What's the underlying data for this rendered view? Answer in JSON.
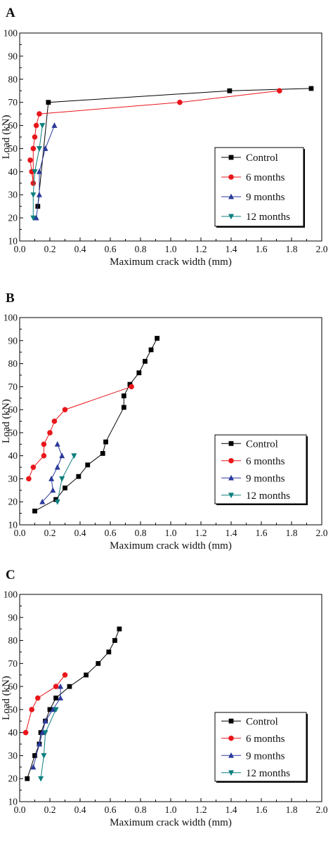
{
  "chart_data": [
    {
      "panel": "A",
      "type": "line",
      "xlabel": "Maximum crack width (mm)",
      "ylabel": "Load (kN)",
      "xlim": [
        0,
        2.0
      ],
      "ylim": [
        10,
        100
      ],
      "xticks": [
        "0.0",
        "0.2",
        "0.4",
        "0.6",
        "0.8",
        "1.0",
        "1.2",
        "1.4",
        "1.6",
        "1.8",
        "2.0"
      ],
      "yticks": [
        "10",
        "20",
        "30",
        "40",
        "50",
        "60",
        "70",
        "80",
        "90",
        "100"
      ],
      "legend": "lower-right",
      "series": [
        {
          "name": "Control",
          "color": "#000000",
          "marker": "square",
          "points": [
            [
              0.12,
              25
            ],
            [
              0.19,
              70
            ],
            [
              1.39,
              75
            ],
            [
              1.93,
              76
            ]
          ]
        },
        {
          "name": "6 months",
          "color": "#e8161a",
          "marker": "circle",
          "points": [
            [
              0.07,
              45
            ],
            [
              0.08,
              40
            ],
            [
              0.09,
              35
            ],
            [
              0.09,
              50
            ],
            [
              0.1,
              55
            ],
            [
              0.11,
              60
            ],
            [
              0.13,
              65
            ],
            [
              1.06,
              70
            ],
            [
              1.72,
              75
            ]
          ]
        },
        {
          "name": "9 months",
          "color": "#2b3a9b",
          "marker": "triangle-up",
          "points": [
            [
              0.11,
              20
            ],
            [
              0.13,
              30
            ],
            [
              0.13,
              40
            ],
            [
              0.17,
              50
            ],
            [
              0.23,
              60
            ]
          ]
        },
        {
          "name": "12 months",
          "color": "#0b7f7e",
          "marker": "triangle-down",
          "points": [
            [
              0.09,
              20
            ],
            [
              0.09,
              30
            ],
            [
              0.1,
              40
            ],
            [
              0.13,
              50
            ],
            [
              0.15,
              60
            ]
          ]
        }
      ]
    },
    {
      "panel": "B",
      "type": "line",
      "xlabel": "Maximum crack width (mm)",
      "ylabel": "Load (kN)",
      "xlim": [
        0,
        2.0
      ],
      "ylim": [
        10,
        100
      ],
      "xticks": [
        "0.0",
        "0.2",
        "0.4",
        "0.6",
        "0.8",
        "1.0",
        "1.2",
        "1.4",
        "1.6",
        "1.8",
        "2.0"
      ],
      "yticks": [
        "10",
        "20",
        "30",
        "40",
        "50",
        "60",
        "70",
        "80",
        "90",
        "100"
      ],
      "legend": "lower-right",
      "series": [
        {
          "name": "Control",
          "color": "#000000",
          "marker": "square",
          "points": [
            [
              0.1,
              16
            ],
            [
              0.24,
              21
            ],
            [
              0.3,
              26
            ],
            [
              0.39,
              31
            ],
            [
              0.45,
              36
            ],
            [
              0.55,
              41
            ],
            [
              0.57,
              46
            ],
            [
              0.69,
              61
            ],
            [
              0.69,
              66
            ],
            [
              0.73,
              71
            ],
            [
              0.79,
              76
            ],
            [
              0.83,
              81
            ],
            [
              0.87,
              86
            ],
            [
              0.91,
              91
            ]
          ]
        },
        {
          "name": "6 months",
          "color": "#e8161a",
          "marker": "circle",
          "points": [
            [
              0.06,
              30
            ],
            [
              0.09,
              35
            ],
            [
              0.16,
              40
            ],
            [
              0.16,
              45
            ],
            [
              0.2,
              50
            ],
            [
              0.23,
              55
            ],
            [
              0.3,
              60
            ],
            [
              0.74,
              70
            ]
          ]
        },
        {
          "name": "9 months",
          "color": "#2b3a9b",
          "marker": "triangle-up",
          "points": [
            [
              0.15,
              20
            ],
            [
              0.22,
              25
            ],
            [
              0.21,
              30
            ],
            [
              0.25,
              35
            ],
            [
              0.28,
              40
            ],
            [
              0.25,
              45
            ]
          ]
        },
        {
          "name": "12 months",
          "color": "#0b7f7e",
          "marker": "triangle-down",
          "points": [
            [
              0.25,
              20
            ],
            [
              0.28,
              30
            ],
            [
              0.36,
              40
            ]
          ]
        }
      ]
    },
    {
      "panel": "C",
      "type": "line",
      "xlabel": "Maximum crack width (mm)",
      "ylabel": "Load (kN)",
      "xlim": [
        0,
        2.0
      ],
      "ylim": [
        10,
        100
      ],
      "xticks": [
        "0.0",
        "0.2",
        "0.4",
        "0.6",
        "0.8",
        "1.0",
        "1.2",
        "1.4",
        "1.6",
        "1.8",
        "2.0"
      ],
      "yticks": [
        "10",
        "20",
        "30",
        "40",
        "50",
        "60",
        "70",
        "80",
        "90",
        "100"
      ],
      "legend": "lower-right",
      "series": [
        {
          "name": "Control",
          "color": "#000000",
          "marker": "square",
          "points": [
            [
              0.05,
              20
            ],
            [
              0.1,
              30
            ],
            [
              0.13,
              35
            ],
            [
              0.14,
              40
            ],
            [
              0.17,
              45
            ],
            [
              0.2,
              50
            ],
            [
              0.24,
              55
            ],
            [
              0.33,
              60
            ],
            [
              0.44,
              65
            ],
            [
              0.52,
              70
            ],
            [
              0.59,
              75
            ],
            [
              0.63,
              80
            ],
            [
              0.66,
              85
            ]
          ]
        },
        {
          "name": "6 months",
          "color": "#e8161a",
          "marker": "circle",
          "points": [
            [
              0.04,
              40
            ],
            [
              0.08,
              50
            ],
            [
              0.12,
              55
            ],
            [
              0.24,
              60
            ],
            [
              0.3,
              65
            ]
          ]
        },
        {
          "name": "9 months",
          "color": "#2b3a9b",
          "marker": "triangle-up",
          "points": [
            [
              0.09,
              25
            ],
            [
              0.13,
              35
            ],
            [
              0.15,
              40
            ],
            [
              0.17,
              45
            ],
            [
              0.22,
              50
            ],
            [
              0.27,
              55
            ],
            [
              0.27,
              60
            ]
          ]
        },
        {
          "name": "12 months",
          "color": "#0b7f7e",
          "marker": "triangle-down",
          "points": [
            [
              0.14,
              20
            ],
            [
              0.16,
              30
            ],
            [
              0.17,
              40
            ],
            [
              0.24,
              50
            ]
          ]
        }
      ]
    }
  ]
}
